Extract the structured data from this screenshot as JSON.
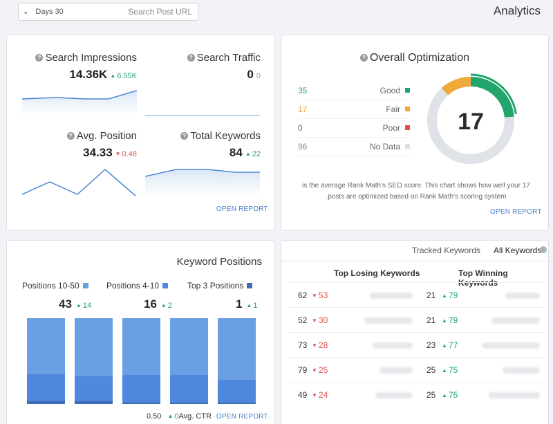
{
  "header": {
    "days_label": "Days 30",
    "search_placeholder": "Search Post URL",
    "title": "Analytics"
  },
  "stats": {
    "impressions": {
      "label": "Search Impressions",
      "value": "14.36K",
      "delta": "6.55K"
    },
    "traffic": {
      "label": "Search Traffic",
      "value": "0",
      "delta": "0"
    },
    "position": {
      "label": "Avg. Position",
      "value": "34.33",
      "delta": "0.48"
    },
    "keywords": {
      "label": "Total Keywords",
      "value": "84",
      "delta": "22"
    },
    "open_report": "OPEN REPORT"
  },
  "optimization": {
    "title": "Overall Optimization",
    "score": "17",
    "rows": [
      {
        "count": "35",
        "label": "Good",
        "color": "#21a56d"
      },
      {
        "count": "17",
        "label": "Fair",
        "color": "#f0a83a"
      },
      {
        "count": "0",
        "label": "Poor",
        "color": "#e05050"
      },
      {
        "count": "96",
        "label": "No Data",
        "color": "#dcdfe3"
      }
    ],
    "description_line1": "is the average Rank Math's SEO score. This chart shows how well your 17",
    "description_line2": ".posts are optimized based on Rank Math's scoring system",
    "open_report": "OPEN REPORT"
  },
  "keyword_positions": {
    "title": "Keyword Positions",
    "legend": [
      {
        "label": "Positions 10-50",
        "color": "#6b9fe4"
      },
      {
        "label": "Positions 4-10",
        "color": "#4f88de"
      },
      {
        "label": "Top 3 Positions",
        "color": "#3f6db5"
      }
    ],
    "values": [
      {
        "value": "43",
        "delta": "14"
      },
      {
        "value": "16",
        "delta": "2"
      },
      {
        "value": "1",
        "delta": "1"
      }
    ],
    "bars": [
      {
        "mid": 0.35,
        "bot": 0.03
      },
      {
        "mid": 0.32,
        "bot": 0.03
      },
      {
        "mid": 0.34,
        "bot": 0.02
      },
      {
        "mid": 0.34,
        "bot": 0.01
      },
      {
        "mid": 0.28,
        "bot": 0.01
      }
    ],
    "ctr_value": "0.50",
    "ctr_delta": "0",
    "ctr_label": "Avg. CTR",
    "open_report": "OPEN REPORT"
  },
  "keywords_table": {
    "tab_tracked": "Tracked Keywords",
    "tab_all": "All Keywords",
    "losing_header": "Top Losing Keywords",
    "winning_header": "Top Winning Keywords",
    "rows": [
      {
        "lose_pos": "62",
        "lose_delta": "53",
        "win_pos": "21",
        "win_delta": "79"
      },
      {
        "lose_pos": "52",
        "lose_delta": "30",
        "win_pos": "21",
        "win_delta": "79"
      },
      {
        "lose_pos": "73",
        "lose_delta": "28",
        "win_pos": "23",
        "win_delta": "77"
      },
      {
        "lose_pos": "79",
        "lose_delta": "25",
        "win_pos": "25",
        "win_delta": "75"
      },
      {
        "lose_pos": "49",
        "lose_delta": "24",
        "win_pos": "25",
        "win_delta": "75"
      }
    ]
  }
}
